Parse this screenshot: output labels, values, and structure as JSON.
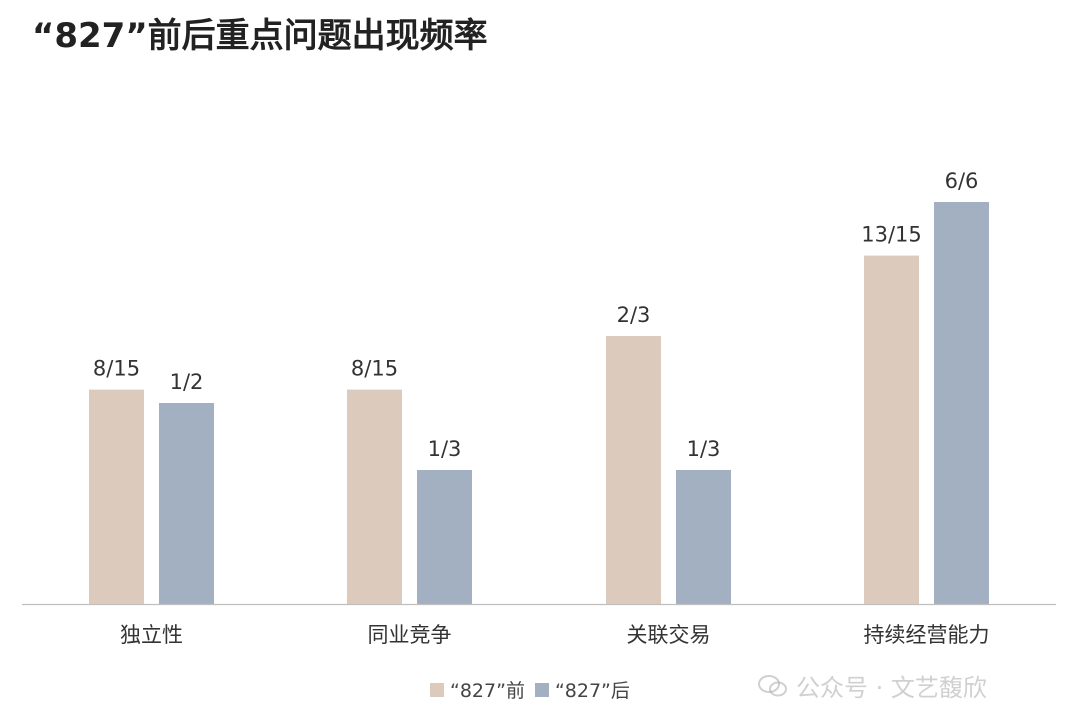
{
  "title": "“827”前后重点问题出现频率",
  "legend": {
    "before_label": "“827”前",
    "after_label": "“827”后"
  },
  "watermark": {
    "text": "公众号 · 文艺馥欣",
    "icon": "wechat-icon"
  },
  "colors": {
    "before": "#dccbbd",
    "after": "#a2b0c1",
    "axis": "#bfbfbf"
  },
  "chart_data": {
    "type": "bar",
    "title": "“827”前后重点问题出现频率",
    "categories": [
      "独立性",
      "同业竞争",
      "关联交易",
      "持续经营能力"
    ],
    "series": [
      {
        "name": "“827”前",
        "values": [
          0.5333,
          0.5333,
          0.6667,
          0.8667
        ],
        "labels": [
          "8/15",
          "8/15",
          "2/3",
          "13/15"
        ]
      },
      {
        "name": "“827”后",
        "values": [
          0.5,
          0.3333,
          0.3333,
          1.0
        ],
        "labels": [
          "1/2",
          "1/3",
          "1/3",
          "6/6"
        ]
      }
    ],
    "ylim": [
      0,
      1
    ],
    "grid": false,
    "legend_position": "bottom",
    "xlabel": "",
    "ylabel": ""
  }
}
